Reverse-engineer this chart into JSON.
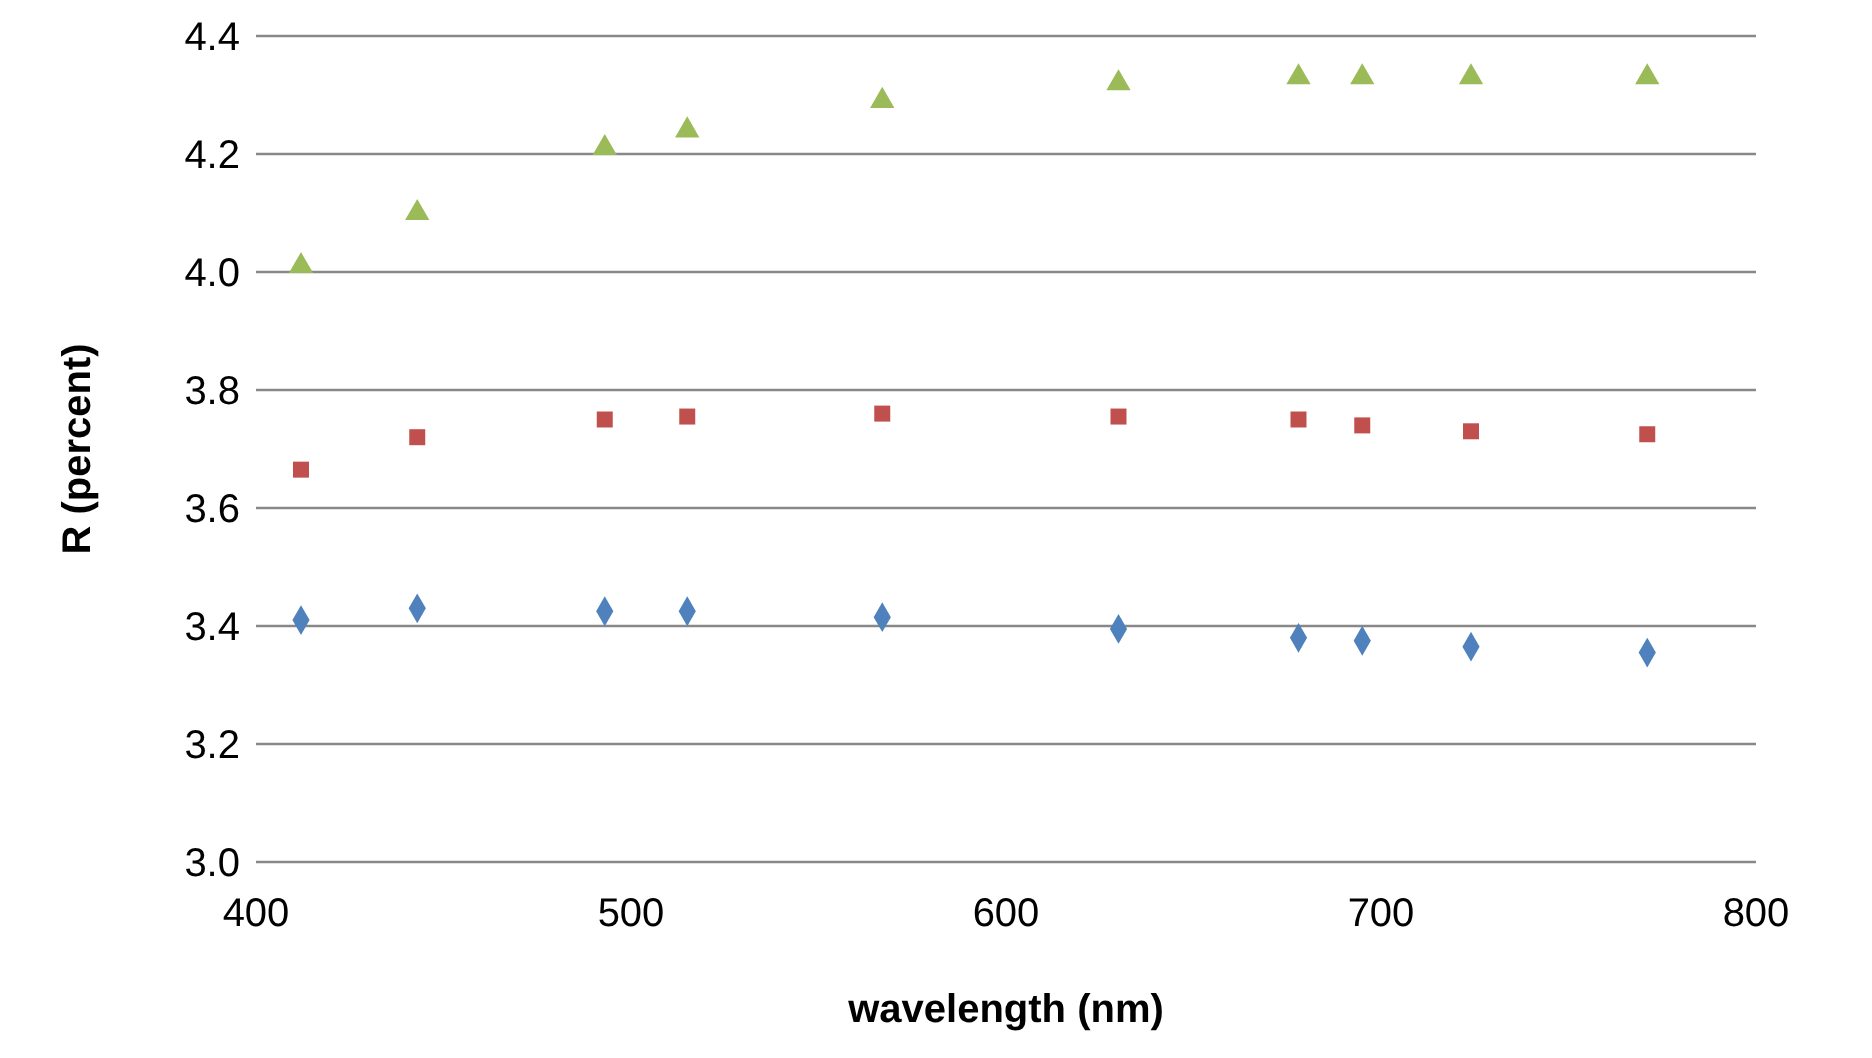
{
  "chart_data": {
    "type": "scatter",
    "xlabel": "wavelength (nm)",
    "ylabel": "R (percent)",
    "x": [
      412,
      443,
      493,
      515,
      567,
      630,
      678,
      695,
      724,
      771
    ],
    "series": [
      {
        "color": "#4f81bd",
        "marker": "diamond",
        "values": [
          3.41,
          3.43,
          3.425,
          3.425,
          3.415,
          3.395,
          3.38,
          3.375,
          3.365,
          3.355
        ]
      },
      {
        "color": "#c0504d",
        "marker": "square",
        "values": [
          3.665,
          3.72,
          3.75,
          3.755,
          3.76,
          3.755,
          3.75,
          3.74,
          3.73,
          3.725
        ]
      },
      {
        "color": "#9bbb59",
        "marker": "triangle",
        "values": [
          4.01,
          4.1,
          4.21,
          4.24,
          4.29,
          4.32,
          4.33,
          4.33,
          4.33,
          4.33
        ]
      }
    ],
    "xlim": [
      400,
      800
    ],
    "xticks": [
      400,
      500,
      600,
      700,
      800
    ],
    "ylim": [
      3.0,
      4.4
    ],
    "yticks": [
      {
        "value": 3,
        "label": "3.0"
      },
      3.2,
      3.4,
      3.6,
      3.8,
      {
        "value": 4,
        "label": "4.0"
      },
      4.2,
      4.4
    ],
    "grid": "y"
  }
}
